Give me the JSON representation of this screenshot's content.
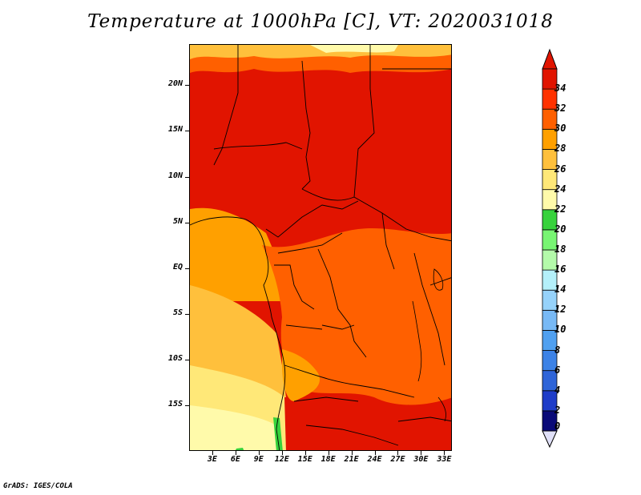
{
  "title": "Temperature at 1000hPa [C], VT: 2020031018",
  "y_axis": {
    "labels": [
      "20N",
      "15N",
      "10N",
      "5N",
      "EQ",
      "5S",
      "10S",
      "15S"
    ],
    "values": [
      20,
      15,
      10,
      5,
      0,
      -5,
      -10,
      -15
    ]
  },
  "x_axis": {
    "labels": [
      "3E",
      "6E",
      "9E",
      "12E",
      "15E",
      "18E",
      "21E",
      "24E",
      "27E",
      "30E",
      "33E"
    ],
    "values": [
      3,
      6,
      9,
      12,
      15,
      18,
      21,
      24,
      27,
      30,
      33
    ]
  },
  "map_extent": {
    "lon": [
      0,
      34
    ],
    "lat": [
      -20,
      24.5
    ]
  },
  "colorbar": {
    "labels": [
      "0",
      "2",
      "4",
      "6",
      "8",
      "10",
      "12",
      "14",
      "16",
      "18",
      "20",
      "22",
      "24",
      "26",
      "28",
      "30",
      "32",
      "34"
    ],
    "colors": [
      "#0a0a78",
      "#1e3cc8",
      "#2e64d8",
      "#3c82e6",
      "#50a0f0",
      "#78b9f5",
      "#96d2fa",
      "#b4f0fa",
      "#b4faaa",
      "#78f573",
      "#37d23c",
      "#fffaaa",
      "#ffe878",
      "#ffc03c",
      "#ffa000",
      "#ff6000",
      "#ff3200",
      "#e11400"
    ]
  },
  "footer": "GrADS: IGES/COLA"
}
